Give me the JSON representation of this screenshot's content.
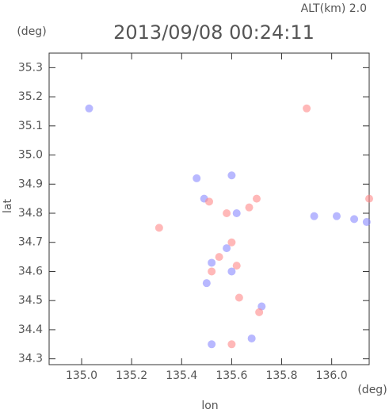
{
  "chart_data": {
    "type": "scatter",
    "title": "2013/09/08 00:24:11",
    "subtitle": "ALT(km) 2.0",
    "y_unit": "(deg)",
    "x_unit": "(deg)",
    "x_label": "lon",
    "y_label": "lat",
    "xlim": [
      134.87,
      136.15
    ],
    "ylim": [
      34.28,
      35.35
    ],
    "xticks": [
      {
        "value": 135,
        "label": "135.0"
      },
      135.2,
      135.4,
      135.6,
      135.8,
      {
        "value": 136,
        "label": "136.0"
      }
    ],
    "yticks": [
      34.3,
      34.4,
      34.5,
      34.6,
      34.7,
      34.8,
      34.9,
      {
        "value": 35,
        "label": "35.0"
      },
      35.1,
      35.2,
      35.3
    ],
    "series": [
      {
        "color": "#8888ff",
        "x": [
          135.46,
          135.6,
          135.49,
          135.62,
          135.58,
          135.52,
          135.6,
          135.5,
          135.72,
          135.68,
          135.52,
          136.02,
          136.14,
          135.93,
          136.09,
          135.03
        ],
        "values": [
          34.92,
          34.93,
          34.85,
          34.8,
          34.68,
          34.63,
          34.6,
          34.56,
          34.48,
          34.37,
          34.35,
          34.79,
          34.77,
          34.79,
          34.78,
          35.16
        ]
      },
      {
        "color": "#ff8888",
        "x": [
          135.9,
          135.51,
          135.58,
          135.67,
          135.55,
          135.62,
          135.63,
          135.52,
          135.71,
          135.6,
          135.31,
          136.15,
          135.7,
          135.6
        ],
        "values": [
          35.16,
          34.84,
          34.8,
          34.82,
          34.65,
          34.62,
          34.51,
          34.6,
          34.46,
          34.35,
          34.75,
          34.85,
          34.85,
          34.7
        ]
      }
    ]
  }
}
